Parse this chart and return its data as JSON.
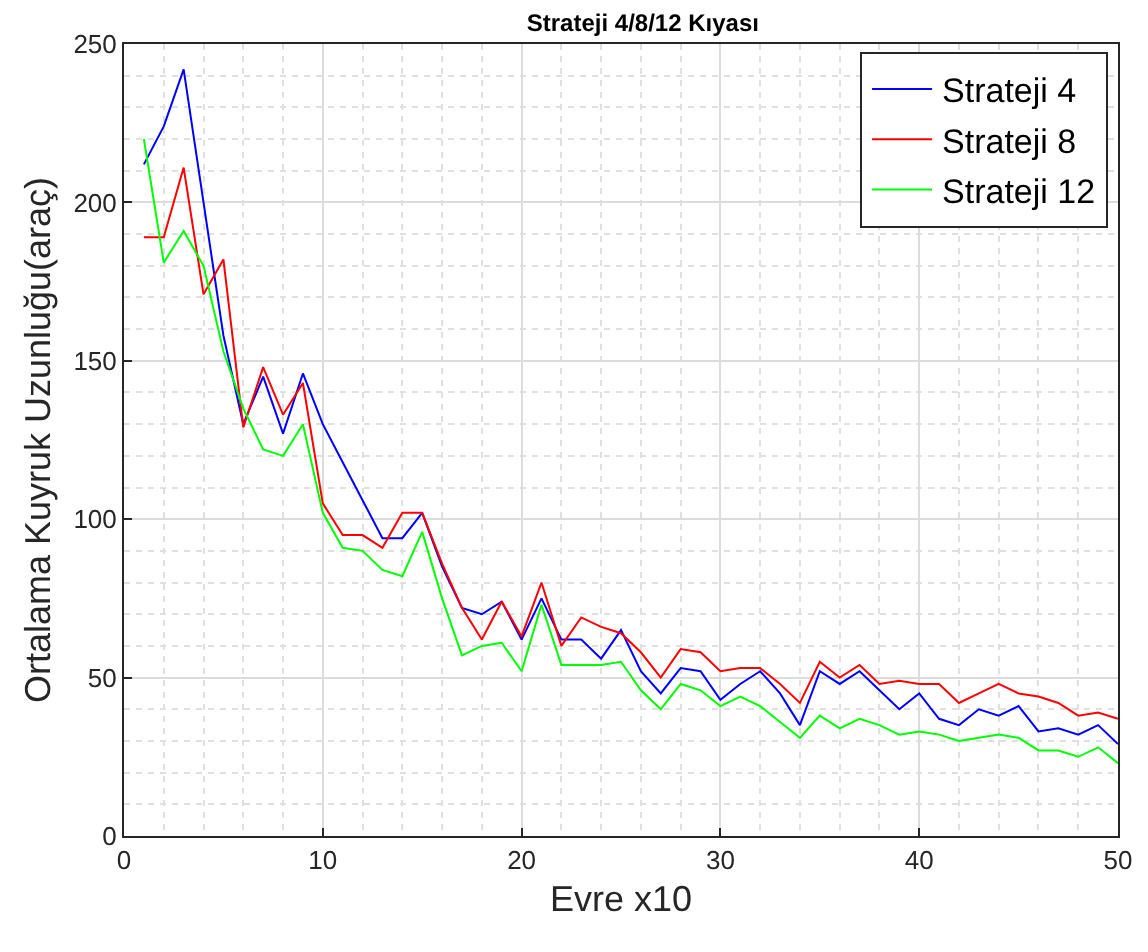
{
  "chart_data": {
    "type": "line",
    "title": "Strateji 4/8/12 Kıyası",
    "xlabel": "Evre x10",
    "ylabel": "Ortalama Kuyruk Uzunluğu(araç)",
    "x": [
      1,
      2,
      3,
      4,
      5,
      6,
      7,
      8,
      9,
      10,
      11,
      12,
      13,
      14,
      15,
      16,
      17,
      18,
      19,
      20,
      21,
      22,
      23,
      24,
      25,
      26,
      27,
      28,
      29,
      30,
      31,
      32,
      33,
      34,
      35,
      36,
      37,
      38,
      39,
      40,
      41,
      42,
      43,
      44,
      45,
      46,
      47,
      48,
      49,
      50
    ],
    "series": [
      {
        "name": "Strateji 4",
        "color": "#0000ff",
        "values": [
          212,
          224,
          242,
          200,
          158,
          130,
          145,
          127,
          146,
          130,
          118,
          106,
          94,
          94,
          102,
          85,
          72,
          70,
          74,
          62,
          75,
          62,
          62,
          56,
          65,
          52,
          45,
          53,
          52,
          43,
          48,
          52,
          45,
          35,
          52,
          48,
          52,
          46,
          40,
          45,
          37,
          35,
          40,
          38,
          41,
          33,
          34,
          32,
          35,
          29
        ]
      },
      {
        "name": "Strateji 8",
        "color": "#ff0000",
        "values": [
          189,
          189,
          211,
          171,
          182,
          129,
          148,
          133,
          143,
          105,
          95,
          95,
          91,
          102,
          102,
          86,
          72,
          62,
          74,
          63,
          80,
          60,
          69,
          66,
          64,
          58,
          50,
          59,
          58,
          52,
          53,
          53,
          48,
          42,
          55,
          50,
          54,
          48,
          49,
          48,
          48,
          42,
          45,
          48,
          45,
          44,
          42,
          38,
          39,
          37
        ]
      },
      {
        "name": "Strateji 12",
        "color": "#00ff00",
        "values": [
          220,
          181,
          191,
          180,
          153,
          135,
          122,
          120,
          130,
          102,
          91,
          90,
          84,
          82,
          96,
          75,
          57,
          60,
          61,
          52,
          73,
          54,
          54,
          54,
          55,
          46,
          40,
          48,
          46,
          41,
          44,
          41,
          36,
          31,
          38,
          34,
          37,
          35,
          32,
          33,
          32,
          30,
          31,
          32,
          31,
          27,
          27,
          25,
          28,
          23
        ]
      }
    ],
    "xlim": [
      0,
      50
    ],
    "xticks": [
      0,
      10,
      20,
      30,
      40,
      50
    ],
    "ylim": [
      0,
      250
    ],
    "yticks": [
      0,
      50,
      100,
      150,
      200,
      250
    ],
    "grid": true,
    "legend": "top right",
    "marker": "none",
    "line_style": "solid"
  }
}
